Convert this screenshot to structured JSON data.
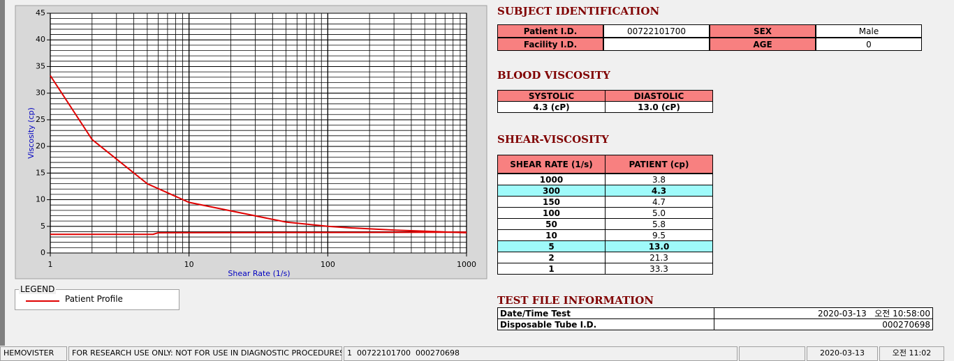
{
  "chart_data": {
    "type": "line",
    "xlabel": "Shear Rate (1/s)",
    "ylabel": "Viscosity (cp)",
    "xscale": "log",
    "xlim": [
      1,
      1000
    ],
    "xticks": [
      1,
      10,
      100,
      1000
    ],
    "ylim": [
      0,
      45
    ],
    "yticks": [
      0,
      5,
      10,
      15,
      20,
      25,
      30,
      35,
      40,
      45
    ],
    "grid": true,
    "minor_grid": true,
    "legend_title": "LEGEND",
    "series": [
      {
        "name": "Patient Profile",
        "color": "#e00000",
        "x": [
          1,
          2,
          5,
          10,
          50,
          100,
          150,
          300,
          1000
        ],
        "values": [
          33.3,
          21.3,
          13.0,
          9.5,
          5.8,
          5.0,
          4.7,
          4.3,
          3.8
        ]
      },
      {
        "color": "#e00000",
        "x": [
          1,
          5.5,
          6,
          1000
        ],
        "values": [
          3.5,
          3.5,
          3.8,
          3.9
        ]
      }
    ]
  },
  "subject_identification": {
    "title": "SUBJECT IDENTIFICATION",
    "rows": [
      [
        "Patient I.D.",
        "00722101700",
        "SEX",
        "Male"
      ],
      [
        "Facility I.D.",
        null,
        "AGE",
        "0"
      ]
    ]
  },
  "blood_viscosity": {
    "title": "BLOOD VISCOSITY",
    "headers": [
      "SYSTOLIC",
      "DIASTOLIC"
    ],
    "values": [
      "4.3 (cP)",
      "13.0 (cP)"
    ]
  },
  "shear_viscosity": {
    "title": "SHEAR-VISCOSITY",
    "headers": [
      "SHEAR RATE (1/s)",
      "PATIENT (cp)"
    ],
    "rows": [
      [
        "1000",
        "3.8"
      ],
      [
        "300",
        "4.3"
      ],
      [
        "150",
        "4.7"
      ],
      [
        "100",
        "5.0"
      ],
      [
        "50",
        "5.8"
      ],
      [
        "10",
        "9.5"
      ],
      [
        "5",
        "13.0"
      ],
      [
        "2",
        "21.3"
      ],
      [
        "1",
        "33.3"
      ]
    ],
    "highlighted": [
      1,
      6
    ]
  },
  "test_file_information": {
    "title": "TEST FILE INFORMATION",
    "rows": [
      [
        "Date/Time Test",
        "2020-03-13   오전 10:58:00"
      ],
      [
        "Disposable Tube I.D.",
        "000270698"
      ]
    ]
  },
  "status_bar": [
    "HEMOVISTER",
    "FOR RESEARCH USE ONLY: NOT FOR USE IN DIAGNOSTIC PROCEDURES",
    "1  00722101700  000270698",
    null,
    "2020-03-13",
    "오전 11:02"
  ]
}
